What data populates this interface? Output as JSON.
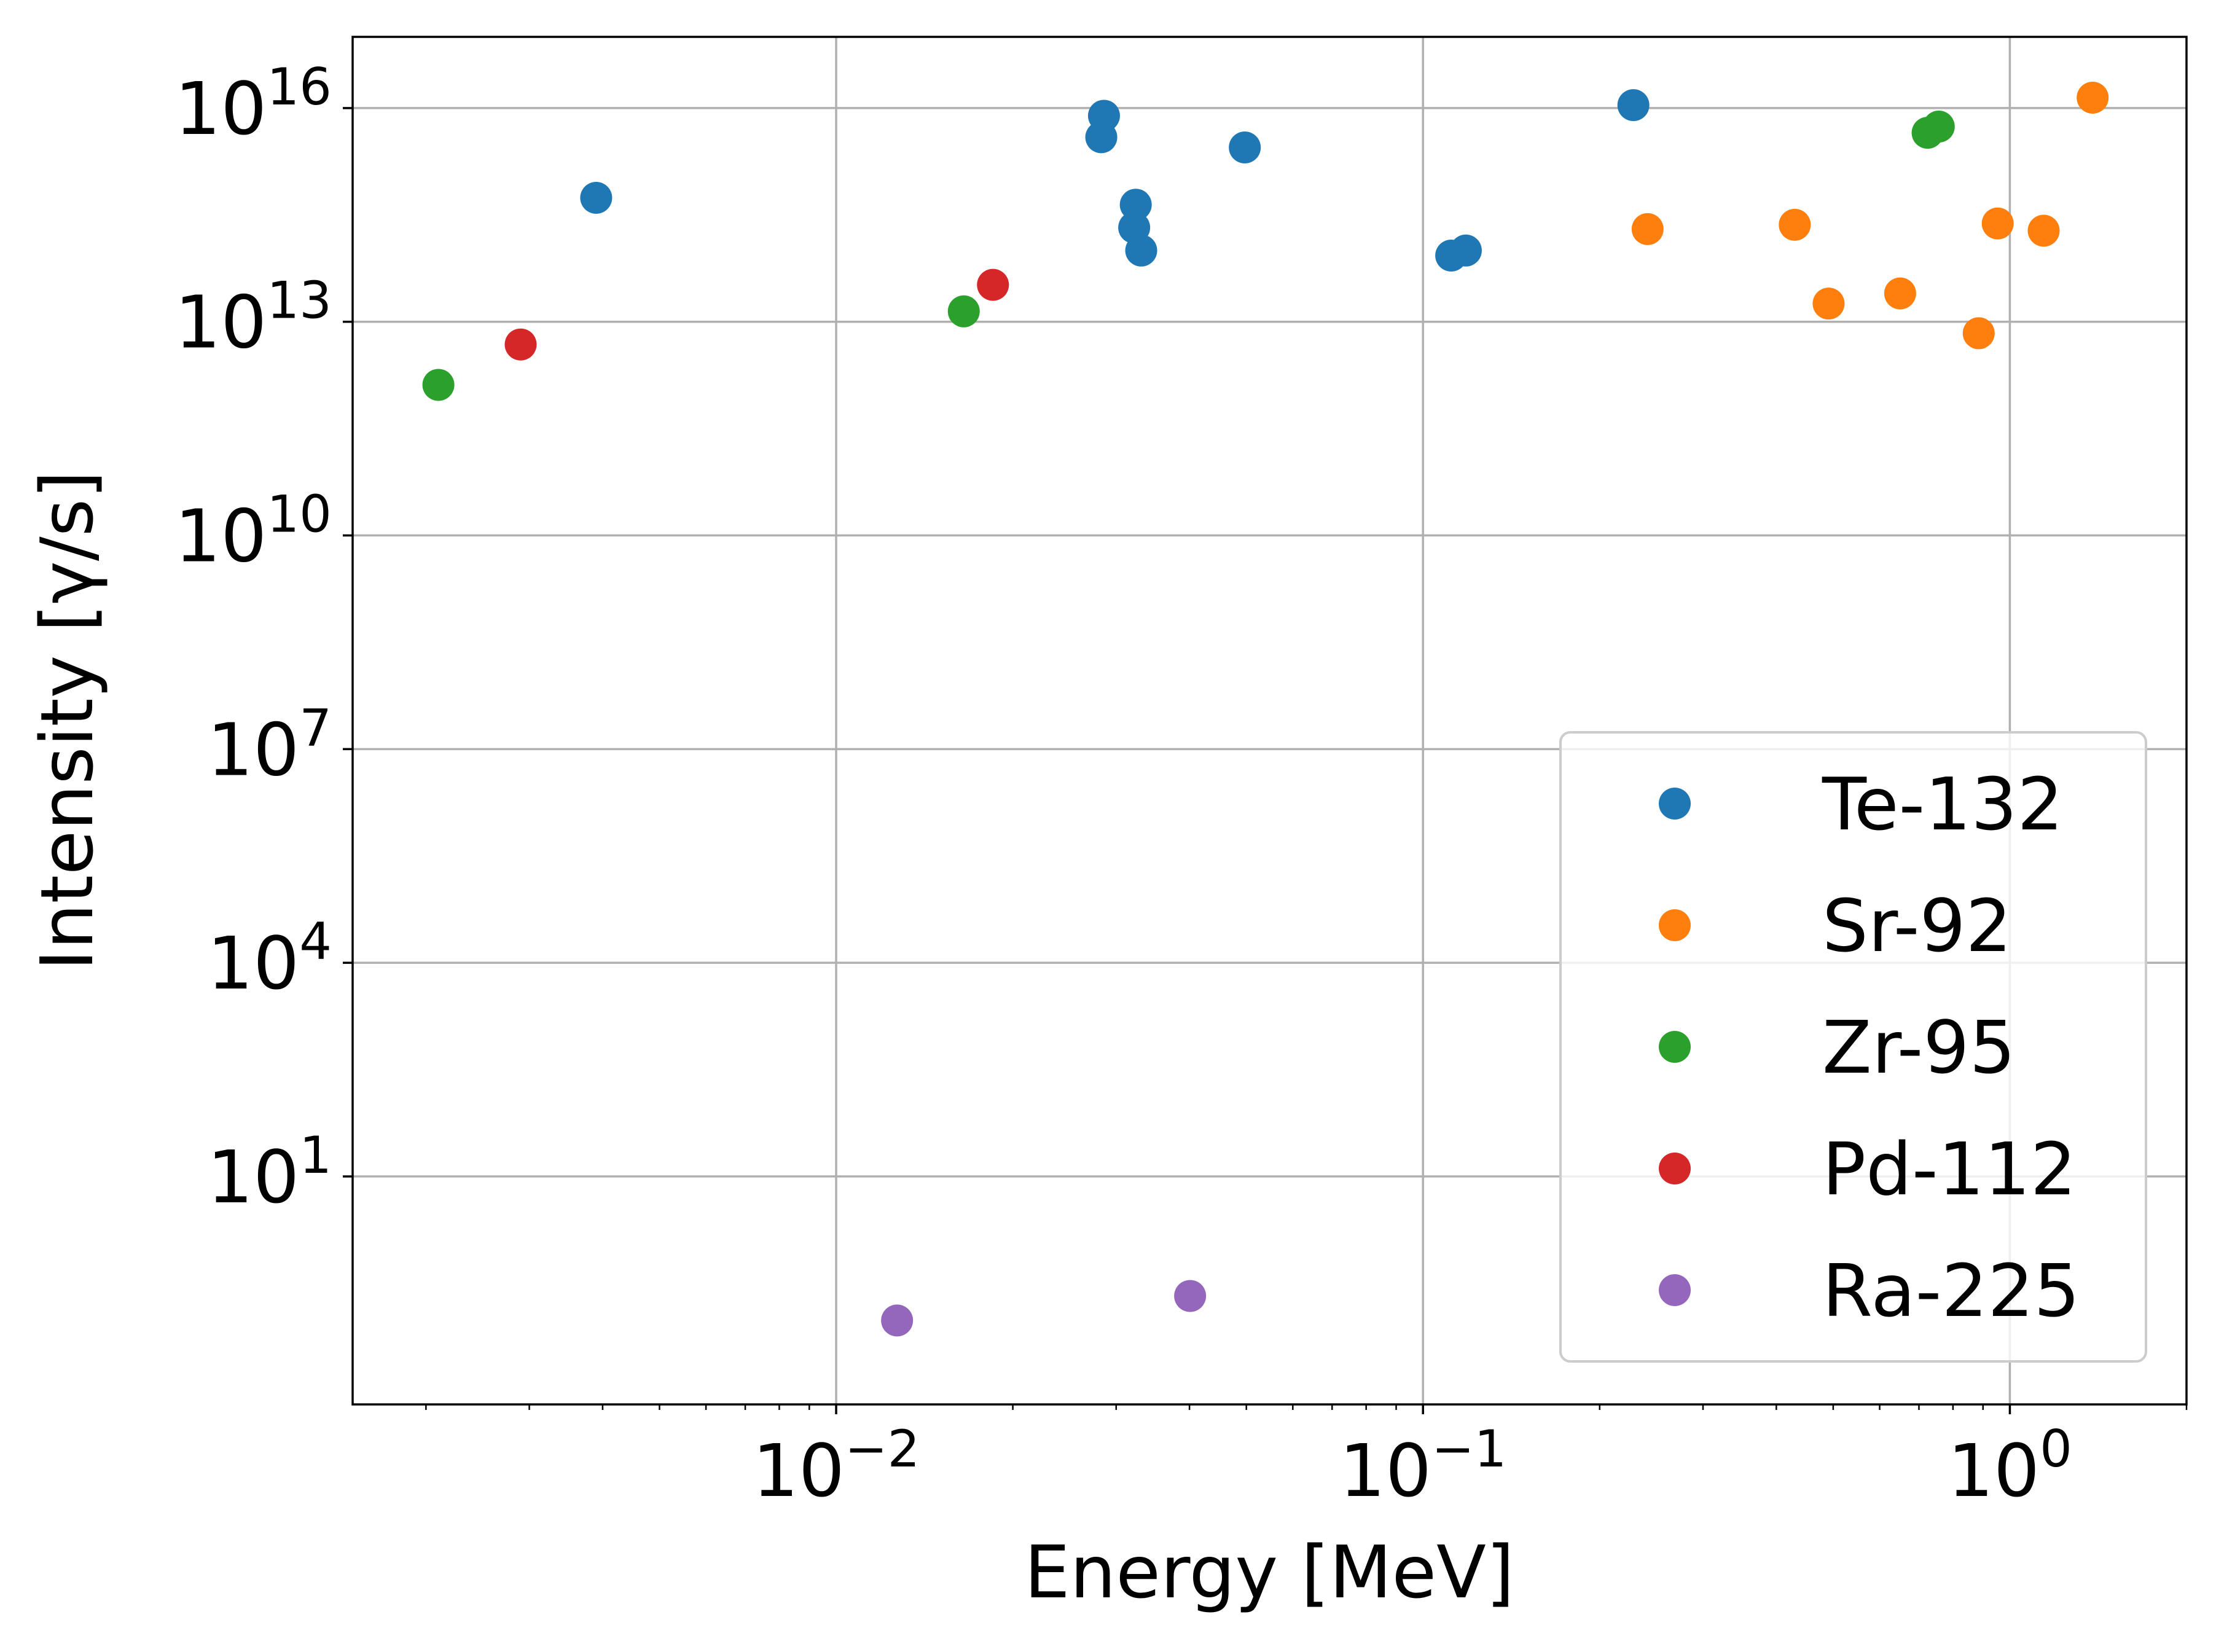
{
  "chart_data": {
    "type": "scatter",
    "title": "",
    "xlabel": "Energy [MeV]",
    "ylabel": "Intensity [γ/s]",
    "xscale": "log",
    "yscale": "log",
    "xlim": [
      0.0015,
      2.0
    ],
    "ylim": [
      0.0063,
      1e+17
    ],
    "grid": true,
    "legend_position": "lower right",
    "x_ticks": [
      {
        "value": 0.01,
        "base": "10",
        "exp": "−2"
      },
      {
        "value": 0.1,
        "base": "10",
        "exp": "−1"
      },
      {
        "value": 1,
        "base": "10",
        "exp": "0"
      }
    ],
    "y_ticks": [
      {
        "value": 10,
        "base": "10",
        "exp": "1"
      },
      {
        "value": 10000,
        "base": "10",
        "exp": "4"
      },
      {
        "value": 10000000.0,
        "base": "10",
        "exp": "7"
      },
      {
        "value": 10000000000.0,
        "base": "10",
        "exp": "10"
      },
      {
        "value": 10000000000000.0,
        "base": "10",
        "exp": "13"
      },
      {
        "value": 1e+16,
        "base": "10",
        "exp": "16"
      }
    ],
    "series": [
      {
        "name": "Te-132",
        "color": "#1f77b4",
        "points": [
          [
            0.0039,
            550000000000000.0
          ],
          [
            0.0286,
            7800000000000000.0
          ],
          [
            0.0283,
            3900000000000000.0
          ],
          [
            0.0324,
            440000000000000.0
          ],
          [
            0.0322,
            210000000000000.0
          ],
          [
            0.0331,
            100000000000000.0
          ],
          [
            0.0497,
            2800000000000000.0
          ],
          [
            0.1117,
            85000000000000.0
          ],
          [
            0.1183,
            100000000000000.0
          ],
          [
            0.2283,
            1.1e+16
          ]
        ]
      },
      {
        "name": "Sr-92",
        "color": "#ff7f0e",
        "points": [
          [
            0.2414,
            200000000000000.0
          ],
          [
            0.43,
            230000000000000.0
          ],
          [
            0.4911,
            18000000000000.0
          ],
          [
            0.6502,
            25000000000000.0
          ],
          [
            0.885,
            6900000000000.0
          ],
          [
            0.9535,
            240000000000000.0
          ],
          [
            1.142,
            190000000000000.0
          ],
          [
            1.3838,
            1.4e+16
          ]
        ]
      },
      {
        "name": "Zr-95",
        "color": "#2ca02c",
        "points": [
          [
            0.0021,
            1300000000000.0
          ],
          [
            0.0165,
            14000000000000.0
          ],
          [
            0.7242,
            4500000000000000.0
          ],
          [
            0.7567,
            5500000000000000.0
          ]
        ]
      },
      {
        "name": "Pd-112",
        "color": "#d62728",
        "points": [
          [
            0.0029,
            4800000000000.0
          ],
          [
            0.0185,
            33000000000000.0
          ]
        ]
      },
      {
        "name": "Ra-225",
        "color": "#9467bd",
        "points": [
          [
            0.0127,
            0.095
          ],
          [
            0.0401,
            0.21
          ]
        ]
      }
    ]
  }
}
